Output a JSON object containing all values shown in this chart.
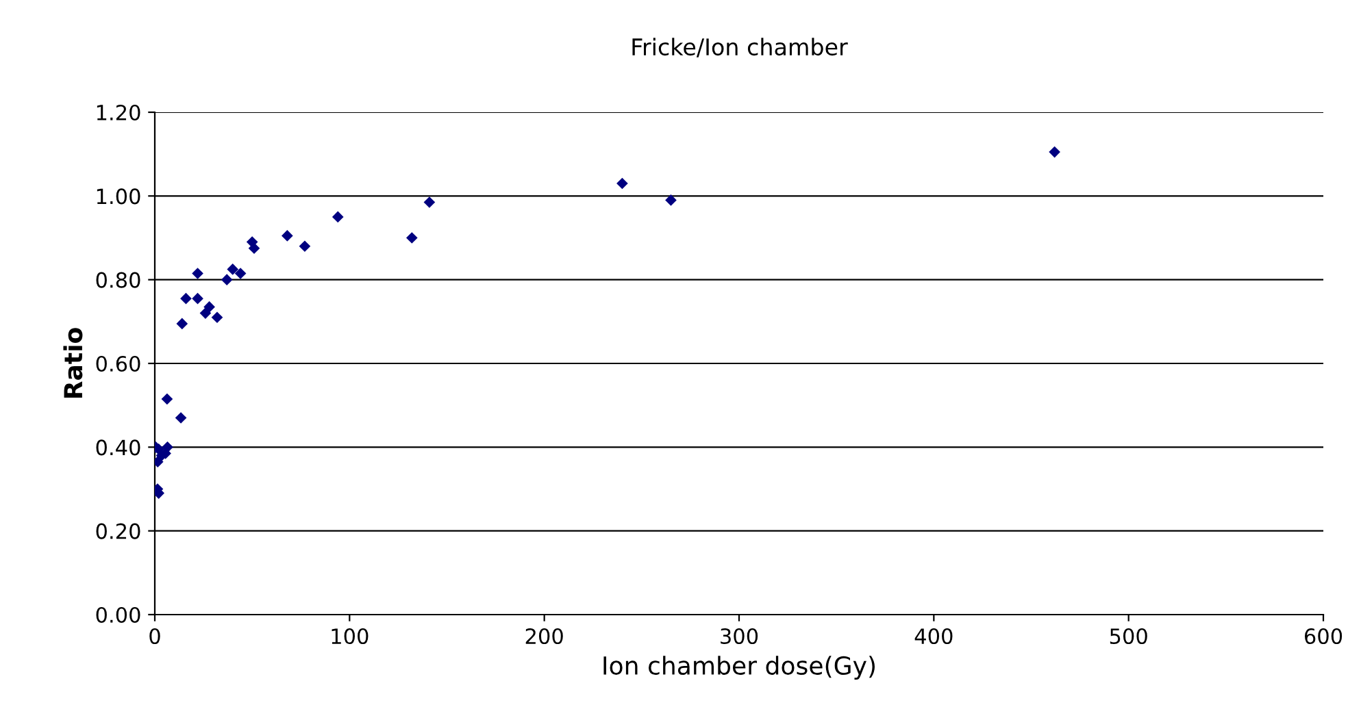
{
  "chart_data": {
    "type": "scatter",
    "title": "Fricke/Ion chamber",
    "xlabel": "Ion chamber dose(Gy)",
    "ylabel": "Ratio",
    "x": [
      0.5,
      2,
      1.4,
      2,
      1.5,
      3.5,
      5.5,
      6.5,
      6.3,
      13.4,
      14,
      16,
      22,
      22,
      26,
      28,
      32,
      37,
      40,
      44,
      50,
      51,
      68,
      77,
      94,
      132,
      141,
      240,
      265,
      462
    ],
    "values": [
      0.4,
      0.395,
      0.3,
      0.29,
      0.365,
      0.38,
      0.385,
      0.4,
      0.515,
      0.47,
      0.695,
      0.755,
      0.755,
      0.815,
      0.72,
      0.735,
      0.71,
      0.8,
      0.825,
      0.815,
      0.89,
      0.875,
      0.905,
      0.88,
      0.95,
      0.9,
      0.985,
      1.03,
      0.99,
      1.105
    ],
    "color": "#000080",
    "marker": "diamond",
    "xlim": [
      0,
      600
    ],
    "xticks": [
      0,
      100,
      200,
      300,
      400,
      500,
      600
    ],
    "ylim": [
      0,
      1.2
    ],
    "yticks": [
      {
        "value": 0,
        "label": "0.00"
      },
      {
        "value": 0.2,
        "label": "0.20"
      },
      {
        "value": 0.4,
        "label": "0.40"
      },
      {
        "value": 0.6,
        "label": "0.60"
      },
      {
        "value": 0.8,
        "label": "0.80"
      },
      {
        "value": 1.0,
        "label": "1.00"
      },
      {
        "value": 1.2,
        "label": "1.20"
      }
    ],
    "grid": "y",
    "legend": false
  }
}
